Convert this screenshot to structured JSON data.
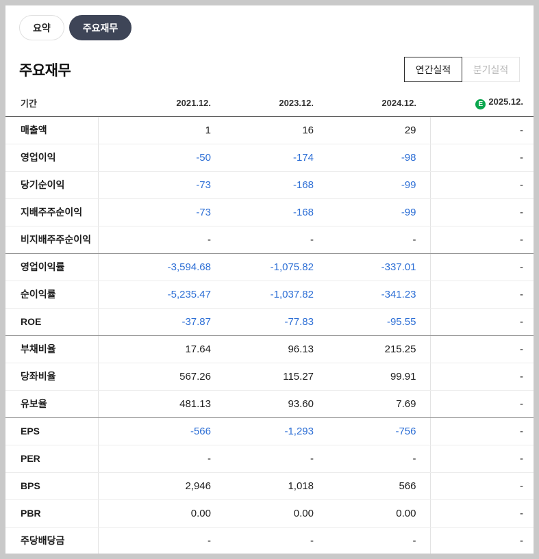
{
  "tabs": [
    {
      "label": "요약"
    },
    {
      "label": "주요재무"
    }
  ],
  "section": {
    "title": "주요재무",
    "toggles": [
      {
        "label": "연간실적"
      },
      {
        "label": "분기실적"
      }
    ]
  },
  "table": {
    "period_label": "기간",
    "columns": [
      "2021.12.",
      "2023.12.",
      "2024.12.",
      "2025.12."
    ],
    "estimate_badge": "E",
    "rows": [
      {
        "label": "매출액",
        "values": [
          "1",
          "16",
          "29",
          "-"
        ]
      },
      {
        "label": "영업이익",
        "values": [
          "-50",
          "-174",
          "-98",
          "-"
        ]
      },
      {
        "label": "당기순이익",
        "values": [
          "-73",
          "-168",
          "-99",
          "-"
        ]
      },
      {
        "label": "지배주주순이익",
        "values": [
          "-73",
          "-168",
          "-99",
          "-"
        ]
      },
      {
        "label": "비지배주주순이익",
        "values": [
          "-",
          "-",
          "-",
          "-"
        ],
        "group_end": true
      },
      {
        "label": "영업이익률",
        "values": [
          "-3,594.68",
          "-1,075.82",
          "-337.01",
          "-"
        ]
      },
      {
        "label": "순이익률",
        "values": [
          "-5,235.47",
          "-1,037.82",
          "-341.23",
          "-"
        ]
      },
      {
        "label": "ROE",
        "values": [
          "-37.87",
          "-77.83",
          "-95.55",
          "-"
        ],
        "group_end": true
      },
      {
        "label": "부채비율",
        "values": [
          "17.64",
          "96.13",
          "215.25",
          "-"
        ]
      },
      {
        "label": "당좌비율",
        "values": [
          "567.26",
          "115.27",
          "99.91",
          "-"
        ]
      },
      {
        "label": "유보율",
        "values": [
          "481.13",
          "93.60",
          "7.69",
          "-"
        ],
        "group_end": true
      },
      {
        "label": "EPS",
        "values": [
          "-566",
          "-1,293",
          "-756",
          "-"
        ]
      },
      {
        "label": "PER",
        "values": [
          "-",
          "-",
          "-",
          "-"
        ]
      },
      {
        "label": "BPS",
        "values": [
          "2,946",
          "1,018",
          "566",
          "-"
        ]
      },
      {
        "label": "PBR",
        "values": [
          "0.00",
          "0.00",
          "0.00",
          "-"
        ]
      },
      {
        "label": "주당배당금",
        "values": [
          "-",
          "-",
          "-",
          "-"
        ]
      }
    ]
  },
  "colors": {
    "negative": "#2c6ed5",
    "estimate_badge": "#0aa74e",
    "active_tab_bg": "#3e4557"
  }
}
